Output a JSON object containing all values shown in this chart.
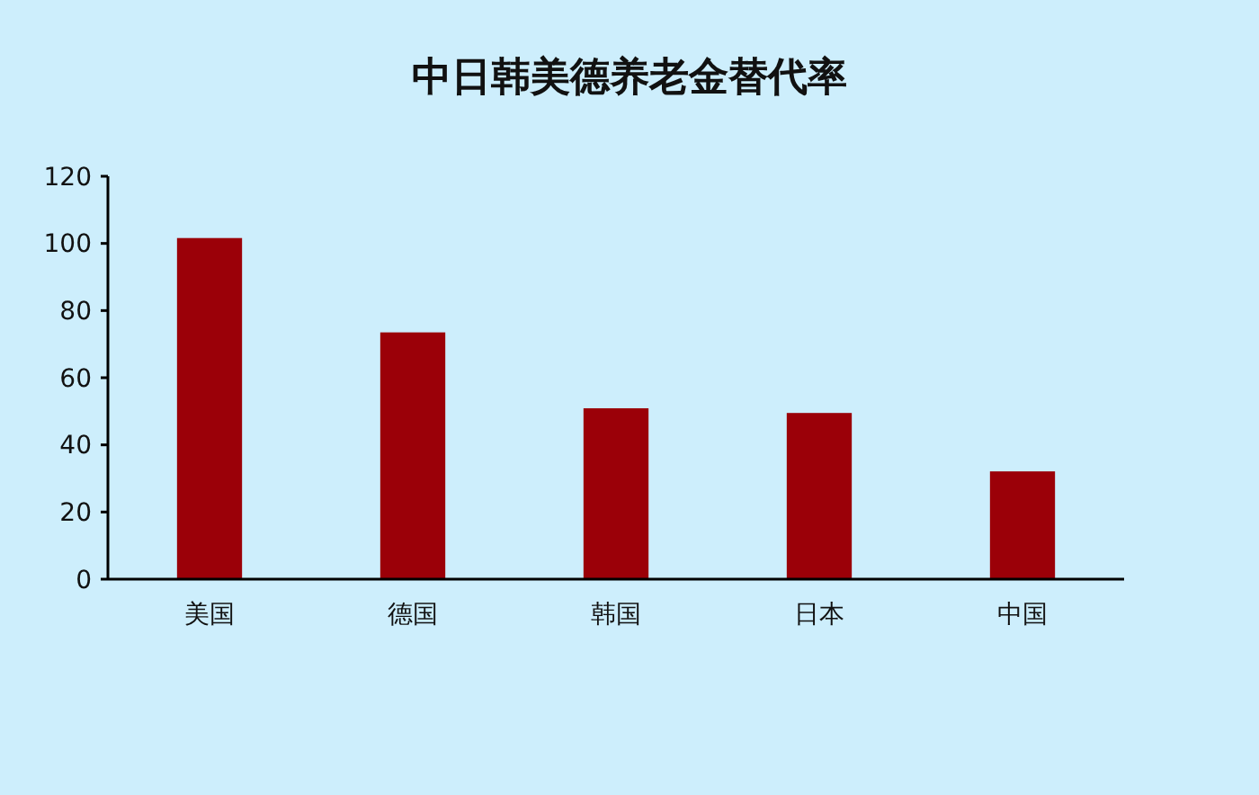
{
  "chart_data": {
    "type": "bar",
    "title": "中日韩美德养老金替代率",
    "categories": [
      "美国",
      "德国",
      "韩国",
      "日本",
      "中国"
    ],
    "values": [
      101.6,
      73.5,
      50.9,
      49.5,
      32.1
    ],
    "color": "#9b0008",
    "ylim": [
      0,
      120
    ],
    "yticks": [
      0,
      20,
      40,
      60,
      80,
      100,
      120
    ],
    "grid": false
  }
}
